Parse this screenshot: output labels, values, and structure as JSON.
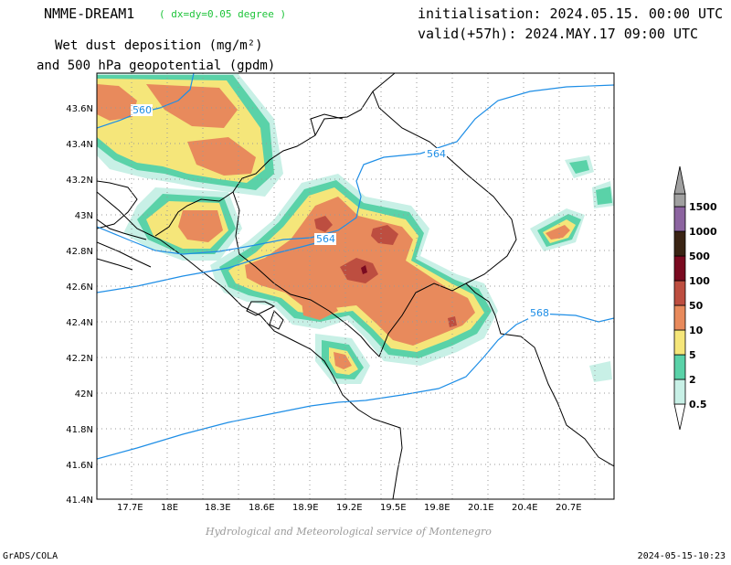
{
  "header": {
    "model": "NMME-DREAM1",
    "resolution": "( dx=dy=0.05 degree )",
    "title_line2": "Wet dust deposition (mg/m²)",
    "title_line3": "and 500 hPa geopotential (gpdm)",
    "initialisation": "initialisation: 2024.05.15. 00:00 UTC",
    "valid": "valid(+57h): 2024.MAY.17 09:00 UTC"
  },
  "map": {
    "lon_ticks": [
      "17.7E",
      "18E",
      "18.3E",
      "18.6E",
      "18.9E",
      "19.2E",
      "19.5E",
      "19.8E",
      "20.1E",
      "20.4E",
      "20.7E"
    ],
    "lat_ticks": [
      "43.6N",
      "43.4N",
      "43.2N",
      "43N",
      "42.8N",
      "42.6N",
      "42.4N",
      "42.2N",
      "42N",
      "41.8N",
      "41.6N",
      "41.4N"
    ],
    "contours": [
      {
        "value": "560",
        "color": "#1e8ee6"
      },
      {
        "value": "564",
        "color": "#1e8ee6"
      },
      {
        "value": "564",
        "color": "#1e8ee6"
      },
      {
        "value": "568",
        "color": "#1e8ee6"
      }
    ]
  },
  "colorbar": {
    "levels": [
      "0.5",
      "2",
      "5",
      "10",
      "50",
      "100",
      "500",
      "1000",
      "1500"
    ],
    "colors": [
      "#c8f0e6",
      "#5ad2a8",
      "#f5e67a",
      "#e88a5c",
      "#bd4e40",
      "#7a0a20",
      "#3a2414",
      "#8c64a0",
      "#a0a0a0"
    ]
  },
  "credit": "Hydrological and Meteorological service of Montenegro",
  "footer": {
    "left": "GrADS/COLA",
    "right": "2024-05-15-10:23"
  }
}
